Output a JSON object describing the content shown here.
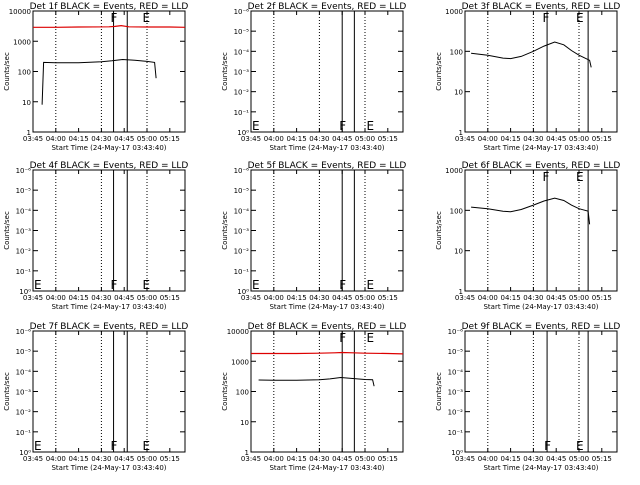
{
  "colors": {
    "events": "#000000",
    "lld": "#dd0000",
    "background": "#ffffff"
  },
  "chart_data": [
    {
      "type": "line",
      "title": "Det 1f BLACK = Events, RED = LLD",
      "xlabel": "Start Time (24-May-17 03:43:40)",
      "ylabel": "Counts/sec",
      "xlim": [
        "03:45",
        "05:25"
      ],
      "yscale": "log",
      "ylim": [
        1,
        10000
      ],
      "x_ticks": [
        "03:45",
        "04:00",
        "04:15",
        "04:30",
        "04:45",
        "05:00",
        "05:15"
      ],
      "y_ticks": [
        "1",
        "10",
        "100",
        "1000",
        "10000"
      ],
      "events_points": [
        [
          "03:51",
          8
        ],
        [
          "03:52",
          200
        ],
        [
          "04:00",
          195
        ],
        [
          "04:15",
          195
        ],
        [
          "04:30",
          210
        ],
        [
          "04:37",
          225
        ],
        [
          "04:44",
          250
        ],
        [
          "04:52",
          235
        ],
        [
          "05:00",
          215
        ],
        [
          "05:05",
          200
        ],
        [
          "05:06",
          60
        ]
      ],
      "lld_points": [
        [
          "03:45",
          2900
        ],
        [
          "04:00",
          2900
        ],
        [
          "04:15",
          2950
        ],
        [
          "04:35",
          3000
        ],
        [
          "04:39",
          3100
        ],
        [
          "04:43",
          3300
        ],
        [
          "04:48",
          3000
        ],
        [
          "05:00",
          2950
        ],
        [
          "05:15",
          2950
        ],
        [
          "05:25",
          2900
        ]
      ],
      "dotted_lines": [
        "04:00",
        "04:30",
        "05:00"
      ],
      "solid_lines": [
        "04:38",
        "04:47"
      ],
      "markers": [
        {
          "label": "F",
          "x": "04:38"
        },
        {
          "label": "E",
          "x": "04:59"
        }
      ],
      "marker_pos": "top"
    },
    {
      "type": "line",
      "title": "Det 2f BLACK = Events, RED = LLD",
      "xlabel": "Start Time (24-May-17 03:43:40)",
      "ylabel": "Counts/sec",
      "xlim": [
        "03:45",
        "05:25"
      ],
      "yscale": "log",
      "ylim": [
        1,
        1e-06
      ],
      "x_ticks": [
        "03:45",
        "04:00",
        "04:15",
        "04:30",
        "04:45",
        "05:00",
        "05:15"
      ],
      "y_ticks": [
        "10⁰",
        "10⁻¹",
        "10⁻²",
        "10⁻³",
        "10⁻⁴",
        "10⁻⁵",
        "10⁻⁶"
      ],
      "events_points": [],
      "lld_points": [],
      "dotted_lines": [
        "04:00",
        "04:30",
        "05:00"
      ],
      "solid_lines": [
        "04:45",
        "04:53"
      ],
      "markers": [
        {
          "label": "E",
          "x": "03:45"
        },
        {
          "label": "F",
          "x": "04:45"
        },
        {
          "label": "E",
          "x": "05:03"
        }
      ],
      "marker_pos": "bottom"
    },
    {
      "type": "line",
      "title": "Det 3f BLACK = Events, RED = LLD",
      "xlabel": "Start Time (24-May-17 03:43:40)",
      "ylabel": "Counts/sec",
      "xlim": [
        "03:45",
        "05:25"
      ],
      "yscale": "log",
      "ylim": [
        1,
        1000
      ],
      "x_ticks": [
        "03:45",
        "04:00",
        "04:15",
        "04:30",
        "04:45",
        "05:00",
        "05:15"
      ],
      "y_ticks": [
        "1",
        "10",
        "100",
        "1000"
      ],
      "events_points": [
        [
          "03:49",
          90
        ],
        [
          "04:00",
          80
        ],
        [
          "04:10",
          68
        ],
        [
          "04:15",
          66
        ],
        [
          "04:22",
          75
        ],
        [
          "04:30",
          100
        ],
        [
          "04:37",
          135
        ],
        [
          "04:44",
          170
        ],
        [
          "04:50",
          145
        ],
        [
          "04:55",
          105
        ],
        [
          "05:00",
          80
        ],
        [
          "05:07",
          60
        ],
        [
          "05:08",
          40
        ]
      ],
      "lld_points": [],
      "dotted_lines": [
        "04:00",
        "04:30",
        "05:00"
      ],
      "solid_lines": [
        "04:39",
        "05:06"
      ],
      "markers": [
        {
          "label": "F",
          "x": "04:38"
        },
        {
          "label": "E",
          "x": "05:00"
        }
      ],
      "marker_pos": "top"
    },
    {
      "type": "line",
      "title": "Det 4f BLACK = Events, RED = LLD",
      "xlabel": "Start Time (24-May-17 03:43:40)",
      "ylabel": "Counts/sec",
      "xlim": [
        "03:45",
        "05:25"
      ],
      "yscale": "log",
      "ylim": [
        1,
        1e-06
      ],
      "x_ticks": [
        "03:45",
        "04:00",
        "04:15",
        "04:30",
        "04:45",
        "05:00",
        "05:15"
      ],
      "y_ticks": [
        "10⁰",
        "10⁻¹",
        "10⁻²",
        "10⁻³",
        "10⁻⁴",
        "10⁻⁵",
        "10⁻⁶"
      ],
      "events_points": [],
      "lld_points": [],
      "dotted_lines": [
        "04:00",
        "04:30",
        "05:00"
      ],
      "solid_lines": [
        "04:38",
        "04:47"
      ],
      "markers": [
        {
          "label": "E",
          "x": "03:45"
        },
        {
          "label": "F",
          "x": "04:38"
        },
        {
          "label": "E",
          "x": "04:59"
        }
      ],
      "marker_pos": "bottom"
    },
    {
      "type": "line",
      "title": "Det 5f BLACK = Events, RED = LLD",
      "xlabel": "Start Time (24-May-17 03:43:40)",
      "ylabel": "Counts/sec",
      "xlim": [
        "03:45",
        "05:25"
      ],
      "yscale": "log",
      "ylim": [
        1,
        1e-06
      ],
      "x_ticks": [
        "03:45",
        "04:00",
        "04:15",
        "04:30",
        "04:45",
        "05:00",
        "05:15"
      ],
      "y_ticks": [
        "10⁰",
        "10⁻¹",
        "10⁻²",
        "10⁻³",
        "10⁻⁴",
        "10⁻⁵",
        "10⁻⁶"
      ],
      "events_points": [],
      "lld_points": [],
      "dotted_lines": [
        "04:00",
        "04:30",
        "05:00"
      ],
      "solid_lines": [
        "04:45",
        "04:53"
      ],
      "markers": [
        {
          "label": "E",
          "x": "03:45"
        },
        {
          "label": "F",
          "x": "04:45"
        },
        {
          "label": "E",
          "x": "05:03"
        }
      ],
      "marker_pos": "bottom"
    },
    {
      "type": "line",
      "title": "Det 6f BLACK = Events, RED = LLD",
      "xlabel": "Start Time (24-May-17 03:43:40)",
      "ylabel": "Counts/sec",
      "xlim": [
        "03:45",
        "05:25"
      ],
      "yscale": "log",
      "ylim": [
        1,
        1000
      ],
      "x_ticks": [
        "03:45",
        "04:00",
        "04:15",
        "04:30",
        "04:45",
        "05:00",
        "05:15"
      ],
      "y_ticks": [
        "1",
        "10",
        "100",
        "1000"
      ],
      "events_points": [
        [
          "03:49",
          120
        ],
        [
          "04:00",
          110
        ],
        [
          "04:10",
          95
        ],
        [
          "04:15",
          92
        ],
        [
          "04:22",
          105
        ],
        [
          "04:30",
          135
        ],
        [
          "04:37",
          170
        ],
        [
          "04:44",
          200
        ],
        [
          "04:50",
          175
        ],
        [
          "04:55",
          135
        ],
        [
          "05:00",
          110
        ],
        [
          "05:06",
          95
        ],
        [
          "05:07",
          45
        ]
      ],
      "lld_points": [],
      "dotted_lines": [
        "04:00",
        "04:30",
        "05:00"
      ],
      "solid_lines": [
        "04:39",
        "05:06"
      ],
      "markers": [
        {
          "label": "F",
          "x": "04:38"
        },
        {
          "label": "E",
          "x": "05:00"
        }
      ],
      "marker_pos": "top"
    },
    {
      "type": "line",
      "title": "Det 7f BLACK = Events, RED = LLD",
      "xlabel": "Start Time (24-May-17 03:43:40)",
      "ylabel": "Counts/sec",
      "xlim": [
        "03:45",
        "05:25"
      ],
      "yscale": "log",
      "ylim": [
        1,
        1e-06
      ],
      "x_ticks": [
        "03:45",
        "04:00",
        "04:15",
        "04:30",
        "04:45",
        "05:00",
        "05:15"
      ],
      "y_ticks": [
        "10⁰",
        "10⁻¹",
        "10⁻²",
        "10⁻³",
        "10⁻⁴",
        "10⁻⁵",
        "10⁻⁶"
      ],
      "events_points": [],
      "lld_points": [],
      "dotted_lines": [
        "04:00",
        "04:30",
        "05:00"
      ],
      "solid_lines": [
        "04:38",
        "04:47"
      ],
      "markers": [
        {
          "label": "E",
          "x": "03:45"
        },
        {
          "label": "F",
          "x": "04:38"
        },
        {
          "label": "E",
          "x": "04:59"
        }
      ],
      "marker_pos": "bottom"
    },
    {
      "type": "line",
      "title": "Det 8f BLACK = Events, RED = LLD",
      "xlabel": "Start Time (24-May-17 03:43:40)",
      "ylabel": "Counts/sec",
      "xlim": [
        "03:45",
        "05:25"
      ],
      "yscale": "log",
      "ylim": [
        1,
        10000
      ],
      "x_ticks": [
        "03:45",
        "04:00",
        "04:15",
        "04:30",
        "04:45",
        "05:00",
        "05:15"
      ],
      "y_ticks": [
        "1",
        "10",
        "100",
        "1000",
        "10000"
      ],
      "events_points": [
        [
          "03:50",
          240
        ],
        [
          "04:00",
          235
        ],
        [
          "04:15",
          235
        ],
        [
          "04:30",
          245
        ],
        [
          "04:37",
          260
        ],
        [
          "04:44",
          290
        ],
        [
          "04:52",
          270
        ],
        [
          "05:00",
          250
        ],
        [
          "05:05",
          245
        ],
        [
          "05:06",
          150
        ]
      ],
      "lld_points": [
        [
          "03:45",
          1800
        ],
        [
          "04:00",
          1800
        ],
        [
          "04:15",
          1800
        ],
        [
          "04:30",
          1850
        ],
        [
          "04:40",
          1900
        ],
        [
          "04:45",
          1950
        ],
        [
          "04:52",
          1900
        ],
        [
          "05:00",
          1850
        ],
        [
          "05:15",
          1800
        ],
        [
          "05:25",
          1750
        ]
      ],
      "dotted_lines": [
        "04:00",
        "04:30",
        "05:00"
      ],
      "solid_lines": [
        "04:45",
        "04:53"
      ],
      "markers": [
        {
          "label": "F",
          "x": "04:45"
        },
        {
          "label": "E",
          "x": "05:03"
        }
      ],
      "marker_pos": "top"
    },
    {
      "type": "line",
      "title": "Det 9f BLACK = Events, RED = LLD",
      "xlabel": "Start Time (24-May-17 03:43:40)",
      "ylabel": "Counts/sec",
      "xlim": [
        "03:45",
        "05:25"
      ],
      "yscale": "log",
      "ylim": [
        1,
        1e-06
      ],
      "x_ticks": [
        "03:45",
        "04:00",
        "04:15",
        "04:30",
        "04:45",
        "05:00",
        "05:15"
      ],
      "y_ticks": [
        "10⁰",
        "10⁻¹",
        "10⁻²",
        "10⁻³",
        "10⁻⁴",
        "10⁻⁵",
        "10⁻⁶"
      ],
      "events_points": [],
      "lld_points": [],
      "dotted_lines": [
        "04:00",
        "04:30",
        "05:00"
      ],
      "solid_lines": [
        "04:39",
        "05:06"
      ],
      "markers": [
        {
          "label": "F",
          "x": "04:39"
        },
        {
          "label": "E",
          "x": "05:00"
        }
      ],
      "marker_pos": "bottom"
    }
  ]
}
